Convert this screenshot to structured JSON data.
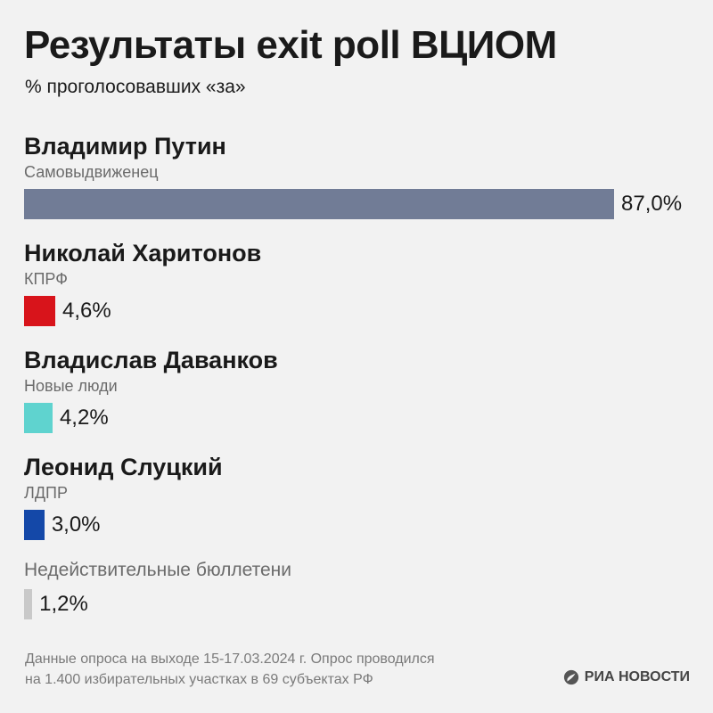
{
  "header": {
    "title": "Результаты exit poll ВЦИОМ",
    "subtitle": "% проголосовавших «за»"
  },
  "chart_data": {
    "type": "bar",
    "orientation": "horizontal",
    "title": "Результаты exit poll ВЦИОМ",
    "subtitle": "% проголосовавших «за»",
    "unit": "%",
    "xlim": [
      0,
      87.0
    ],
    "items": [
      {
        "name": "Владимир Путин",
        "party": "Самовыдвиженец",
        "value": 87.0,
        "label": "87,0%",
        "color": "#717c96"
      },
      {
        "name": "Николай Харитонов",
        "party": "КПРФ",
        "value": 4.6,
        "label": "4,6%",
        "color": "#d8141b"
      },
      {
        "name": "Владислав Даванков",
        "party": "Новые люди",
        "value": 4.2,
        "label": "4,2%",
        "color": "#5fd3cf"
      },
      {
        "name": "Леонид Слуцкий",
        "party": "ЛДПР",
        "value": 3.0,
        "label": "3,0%",
        "color": "#1448a8"
      },
      {
        "name": "Недействительные бюллетени",
        "party": "",
        "value": 1.2,
        "label": "1,2%",
        "color": "#c9c9c9"
      }
    ]
  },
  "footnote": {
    "line1": "Данные опроса на выходе 15-17.03.2024 г. Опрос проводился",
    "line2": "на 1.400 избирательных участках в 69 субъектах РФ"
  },
  "logo": {
    "icon": "ria-logo-icon",
    "text": "РИА НОВОСТИ"
  }
}
